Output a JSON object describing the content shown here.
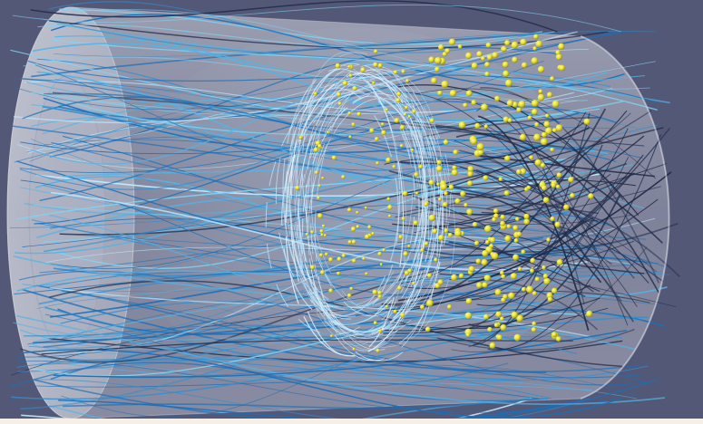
{
  "scene": {
    "background_color": "#545877",
    "cylinder_fill_color": "#c9ccd6",
    "cylinder_edge_color": "#b9bcc8",
    "streamline_colors": [
      "#1b6fb8",
      "#2f8fd0",
      "#52b4e6",
      "#7fd4f4",
      "#bfeaff",
      "#e8f6ff",
      "#1a2540",
      "#25304e"
    ],
    "particle_color": "#e4dc28",
    "particle_highlight_color": "#fffba0",
    "bottom_strip_color": "#f6efe7"
  }
}
